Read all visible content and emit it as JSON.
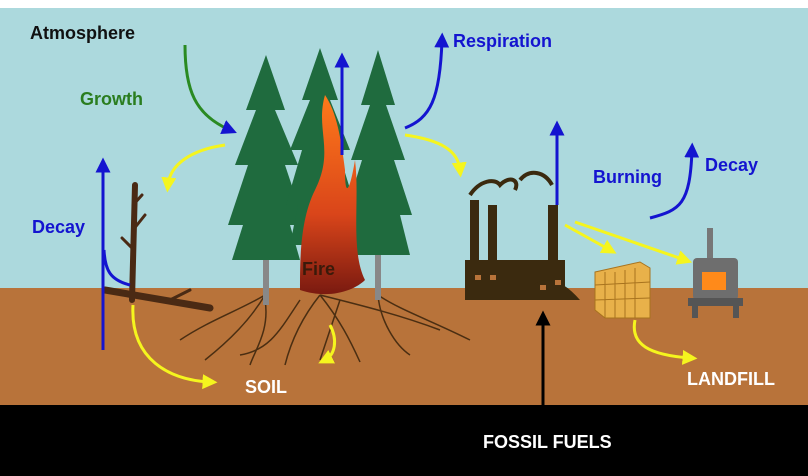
{
  "labels": {
    "atmosphere": "Atmosphere",
    "growth": "Growth",
    "respiration": "Respiration",
    "decay_left": "Decay",
    "fire": "Fire",
    "burning": "Burning",
    "decay_right": "Decay",
    "soil": "SOIL",
    "landfill": "LANDFILL",
    "fossil_fuels": "FOSSIL FUELS"
  }
}
